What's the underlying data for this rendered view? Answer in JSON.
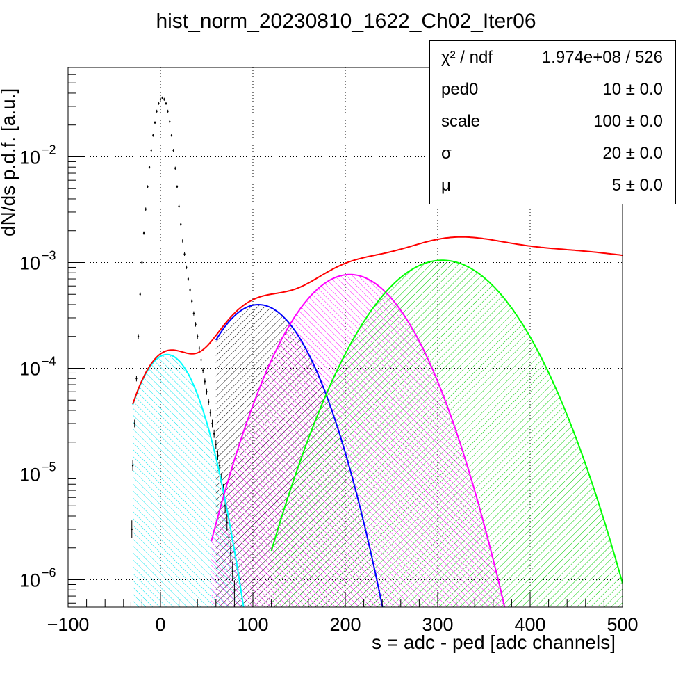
{
  "chart_data": {
    "type": "line",
    "title": "hist_norm_20230810_1622_Ch02_Iter06",
    "xlabel": "s = adc - ped [adc channels]",
    "ylabel": "dN/ds p.d.f. [a.u.]",
    "xlim": [
      -100,
      500
    ],
    "ylim": [
      5.5e-07,
      0.07
    ],
    "y_scale": "log",
    "grid": true,
    "x_ticks": [
      -100,
      0,
      100,
      200,
      300,
      400,
      500
    ],
    "y_ticks": [
      {
        "value": 1e-06,
        "base": "10",
        "exp": "−6"
      },
      {
        "value": 1e-05,
        "base": "10",
        "exp": "−5"
      },
      {
        "value": 0.0001,
        "base": "10",
        "exp": "−4"
      },
      {
        "value": 0.001,
        "base": "10",
        "exp": "−3"
      },
      {
        "value": 0.01,
        "base": "10",
        "exp": "−2"
      }
    ],
    "histogram": {
      "color": "#000000",
      "points": [
        [
          -32,
          5e-07
        ],
        [
          -31,
          3e-06
        ],
        [
          -30,
          1.2e-05
        ],
        [
          -28,
          3e-05
        ],
        [
          -26,
          8e-05
        ],
        [
          -24,
          0.0002
        ],
        [
          -22,
          0.0005
        ],
        [
          -20,
          0.001
        ],
        [
          -18,
          0.0019
        ],
        [
          -16,
          0.0032
        ],
        [
          -14,
          0.0052
        ],
        [
          -12,
          0.008
        ],
        [
          -10,
          0.0115
        ],
        [
          -8,
          0.016
        ],
        [
          -6,
          0.021
        ],
        [
          -4,
          0.027
        ],
        [
          -2,
          0.032
        ],
        [
          0,
          0.035
        ],
        [
          2,
          0.036
        ],
        [
          4,
          0.035
        ],
        [
          6,
          0.032
        ],
        [
          8,
          0.027
        ],
        [
          10,
          0.0215
        ],
        [
          12,
          0.016
        ],
        [
          14,
          0.0115
        ],
        [
          16,
          0.0078
        ],
        [
          18,
          0.0052
        ],
        [
          20,
          0.0034
        ],
        [
          22,
          0.0023
        ],
        [
          24,
          0.0016
        ],
        [
          26,
          0.0012
        ],
        [
          28,
          0.0009
        ],
        [
          30,
          0.0007
        ],
        [
          32,
          0.00055
        ],
        [
          34,
          0.00043
        ],
        [
          36,
          0.00033
        ],
        [
          38,
          0.00026
        ],
        [
          40,
          0.0002
        ],
        [
          42,
          0.000155
        ],
        [
          44,
          0.00012
        ],
        [
          46,
          9.5e-05
        ],
        [
          48,
          7.5e-05
        ],
        [
          50,
          6e-05
        ],
        [
          52,
          4.8e-05
        ],
        [
          54,
          3.8e-05
        ],
        [
          56,
          3e-05
        ],
        [
          58,
          2.4e-05
        ],
        [
          60,
          1.9e-05
        ],
        [
          62,
          1.5e-05
        ],
        [
          64,
          1.2e-05
        ],
        [
          66,
          9e-06
        ],
        [
          68,
          7e-06
        ],
        [
          70,
          5e-06
        ],
        [
          72,
          3.5e-06
        ],
        [
          74,
          2.5e-06
        ],
        [
          76,
          1.8e-06
        ],
        [
          78,
          1.2e-06
        ],
        [
          80,
          8e-07
        ]
      ]
    },
    "total_fit": {
      "color": "#ff0000",
      "x_start": -30,
      "x_end": 500
    },
    "components": [
      {
        "color": "#00ffff",
        "fill": "#00ffff",
        "peak_x": 7,
        "peak_y": 0.000135,
        "sigma": 25,
        "x_start": -30
      },
      {
        "color": "#0000ff",
        "fill": "#000000",
        "peak_x": 106,
        "peak_y": 0.0004,
        "sigma": 37,
        "x_start": 60
      },
      {
        "color": "#ff00ff",
        "fill": "#ff00ff",
        "peak_x": 205,
        "peak_y": 0.00077,
        "sigma": 44,
        "x_start": 55
      },
      {
        "color": "#00ff00",
        "fill": "#00cc00",
        "peak_x": 305,
        "peak_y": 0.00105,
        "sigma": 52,
        "x_start": 120
      }
    ]
  },
  "stats": [
    {
      "key": "χ² / ndf",
      "value": "1.974e+08 / 526"
    },
    {
      "key": "ped0",
      "value": "10 ± 0.0"
    },
    {
      "key": "scale",
      "value": "100 ± 0.0"
    },
    {
      "key": "σ",
      "value": "20 ± 0.0"
    },
    {
      "key": "μ",
      "value": "5 ± 0.0"
    }
  ]
}
